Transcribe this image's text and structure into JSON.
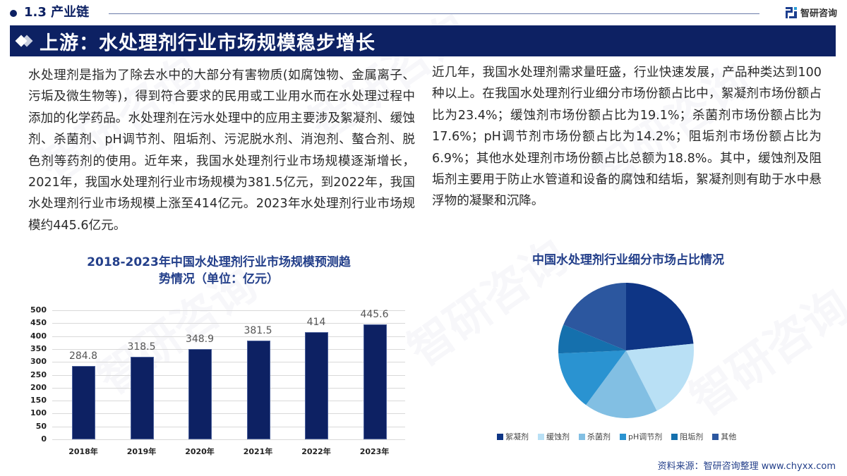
{
  "header": {
    "section_label": "1.3 产业链",
    "brand": "智研咨询",
    "banner_title": "上游：水处理剂行业市场规模稳步增长"
  },
  "paragraphs": {
    "left": "水处理剂是指为了除去水中的大部分有害物质(如腐蚀物、金属离子、污垢及微生物等)，得到符合要求的民用或工业用水而在水处理过程中添加的化学药品。水处理剂在污水处理中的应用主要涉及絮凝剂、缓蚀剂、杀菌剂、pH调节剂、阻垢剂、污泥脱水剂、消泡剂、螯合剂、脱色剂等药剂的使用。近年来，我国水处理剂行业市场规模逐渐增长，2021年，我国水处理剂行业市场规模为381.5亿元，到2022年，我国水处理剂行业市场规模上涨至414亿元。2023年水处理剂行业市场规模约445.6亿元。",
    "right": "近几年，我国水处理剂需求量旺盛，行业快速发展，产品种类达到100种以上。在我国水处理剂行业细分市场份额占比中，絮凝剂市场份额占比为23.4%；缓蚀剂市场份额占比为19.1%；杀菌剂市场份额占比为17.6%；pH调节剂市场份额占比为14.2%；阻垢剂市场份额占比为6.9%；其他水处理剂市场份额占比总额为18.8%。其中，缓蚀剂及阻垢剂主要用于防止水管道和设备的腐蚀和结垢，絮凝剂则有助于水中悬浮物的凝聚和沉降。"
  },
  "source": "资料来源：智研咨询整理 www.chyxx.com",
  "colors": {
    "brand_navy": "#0d2163",
    "title_blue": "#233f8a",
    "bar": "#0d2163"
  },
  "chart_data": [
    {
      "type": "bar",
      "title": "2018-2023年中国水处理剂行业市场规模预测趋势情况（单位：亿元）",
      "title_line1": "2018-2023年中国水处理剂行业市场规模预测趋",
      "title_line2": "势情况（单位：亿元）",
      "categories": [
        "2018年",
        "2019年",
        "2020年",
        "2021年",
        "2022年",
        "2023年"
      ],
      "values": [
        284.8,
        318.5,
        348.9,
        381.5,
        414,
        445.6
      ],
      "value_labels": [
        "284.8",
        "318.5",
        "348.9",
        "381.5",
        "414",
        "445.6"
      ],
      "xlabel": "",
      "ylabel": "",
      "ylim": [
        0,
        500
      ],
      "yticks": [
        "500",
        "450",
        "400",
        "350",
        "300",
        "250",
        "200",
        "150",
        "100",
        "50",
        "0"
      ],
      "grid": true,
      "legend": false
    },
    {
      "type": "pie",
      "title": "中国水处理剂行业细分市场占比情况",
      "categories": [
        "絮凝剂",
        "缓蚀剂",
        "杀菌剂",
        "pH调节剂",
        "阻垢剂",
        "其他"
      ],
      "values": [
        23.4,
        19.1,
        17.6,
        14.2,
        6.9,
        18.8
      ],
      "colors": [
        "#0e3585",
        "#b9e0f5",
        "#82bfe3",
        "#2a93d1",
        "#1570ad",
        "#2c579f"
      ],
      "legend_position": "bottom"
    }
  ]
}
